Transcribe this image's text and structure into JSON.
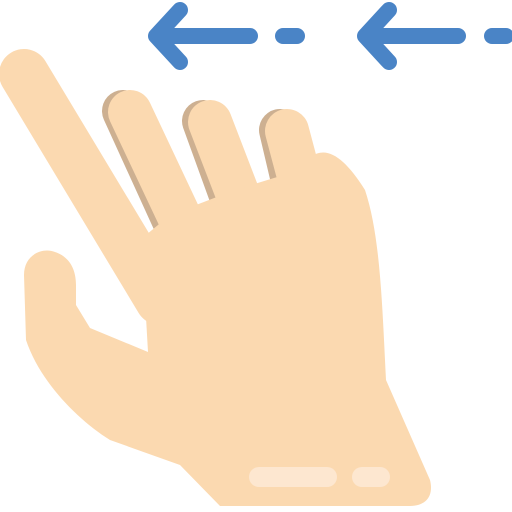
{
  "icon": {
    "subject": "swipe-left-gesture-icon",
    "colors": {
      "arrow": "#4A84C6",
      "skin": "#FBD9B0",
      "skin_shadow": "#CDB091",
      "wristband": "#FDE7D0"
    },
    "arrows": [
      {
        "direction": "left"
      },
      {
        "direction": "left"
      }
    ]
  }
}
